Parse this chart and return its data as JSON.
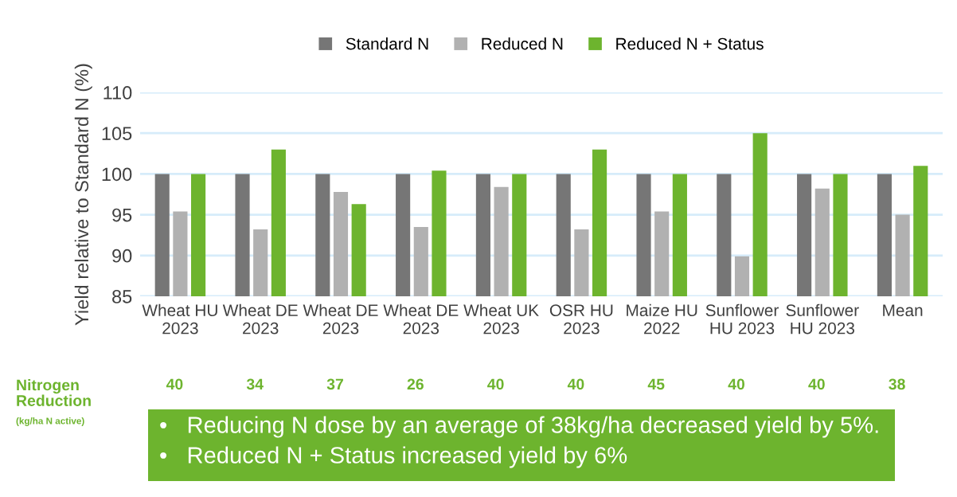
{
  "chart_data": {
    "type": "bar",
    "ylabel": "Yield relative to Standard N (%)",
    "categories": [
      "Wheat HU\n2023",
      "Wheat DE\n2023",
      "Wheat DE\n2023",
      "Wheat DE\n2023",
      "Wheat UK\n2023",
      "OSR HU\n2023",
      "Maize HU\n2022",
      "Sunflower\nHU 2023",
      "Sunflower\nHU 2023",
      "Mean"
    ],
    "series": [
      {
        "name": "Standard N",
        "color": "#767676",
        "values": [
          100,
          100,
          100,
          100,
          100,
          100,
          100,
          100,
          100,
          100
        ]
      },
      {
        "name": "Reduced N",
        "color": "#b1b1b1",
        "values": [
          95.4,
          93.2,
          97.8,
          93.5,
          98.4,
          93.2,
          95.4,
          89.9,
          98.2,
          95.0
        ]
      },
      {
        "name": "Reduced N + Status",
        "color": "#6db42e",
        "values": [
          100,
          103,
          96.3,
          100.4,
          100,
          103,
          100,
          105,
          100,
          101
        ]
      }
    ],
    "ylim": [
      85,
      110
    ],
    "yticks": [
      85,
      90,
      95,
      100,
      105,
      110
    ],
    "grid": "y",
    "legend": "top",
    "annotations": [
      "Nitrogen\nReduction",
      "(kg/ha N active)",
      "40",
      "34",
      "37",
      "26",
      "40",
      "40",
      "45",
      "40",
      "40",
      "38",
      "•   Reducing N dose by an average of 38kg/ha decreased yield by 5%.",
      "•   Reduced N + Status increased yield by 6%"
    ]
  }
}
